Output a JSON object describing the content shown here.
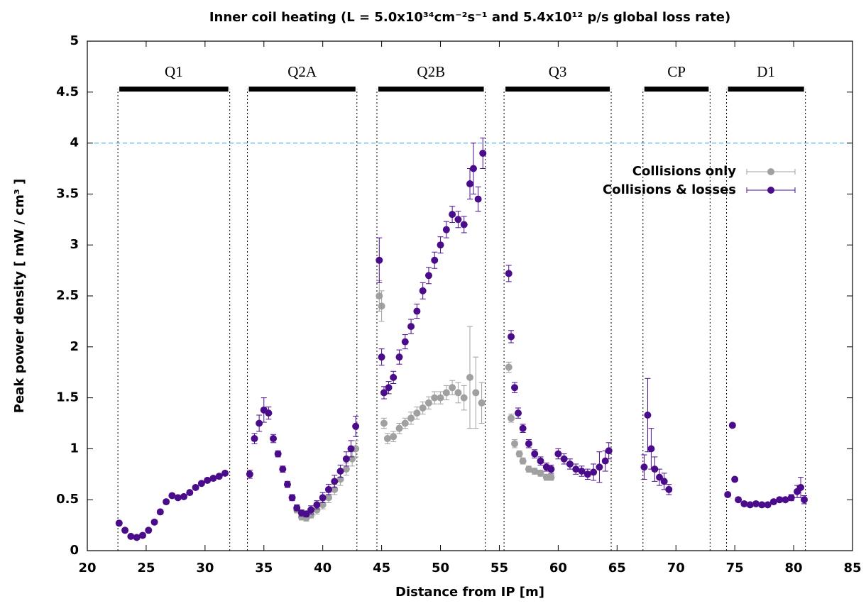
{
  "chart_data": {
    "type": "scatter",
    "title": "Inner coil heating (L = 5.0x10³⁴cm⁻²s⁻¹ and 5.4x10¹² p/s global loss rate)",
    "x_label": "Distance from IP [m]",
    "y_label": "Peak power density [ mW / cm³ ]",
    "xlim": [
      20,
      85
    ],
    "ylim": [
      0,
      5
    ],
    "xticks": [
      20,
      25,
      30,
      35,
      40,
      45,
      50,
      55,
      60,
      65,
      70,
      75,
      80,
      85
    ],
    "yticks": [
      0,
      0.5,
      1,
      1.5,
      2,
      2.5,
      3,
      3.5,
      4,
      4.5,
      5
    ],
    "reference_line": {
      "value": 4,
      "color": "#56b4e9"
    },
    "segments": [
      {
        "label": "Q1",
        "start": 22.6,
        "end": 32.1
      },
      {
        "label": "Q2A",
        "start": 33.6,
        "end": 42.9
      },
      {
        "label": "Q2B",
        "start": 44.6,
        "end": 53.8
      },
      {
        "label": "Q3",
        "start": 55.4,
        "end": 64.5
      },
      {
        "label": "CP",
        "start": 67.2,
        "end": 72.9
      },
      {
        "label": "D1",
        "start": 74.3,
        "end": 81.0
      }
    ],
    "segment_bar_level": 4.53,
    "legend": "upper right",
    "series": [
      {
        "name": "Collisions only",
        "color": "#a0a0a0",
        "x": [
          37.8,
          38.2,
          38.6,
          39.0,
          39.5,
          40.0,
          40.5,
          41.0,
          41.5,
          42.0,
          42.5,
          42.8,
          44.8,
          45.0,
          45.2,
          45.5,
          46.0,
          46.5,
          47.0,
          47.5,
          48.0,
          48.5,
          49.0,
          49.5,
          50.0,
          50.5,
          51.0,
          51.5,
          52.0,
          52.5,
          53.0,
          53.5,
          55.8,
          56.0,
          56.3,
          56.7,
          57.0,
          57.5,
          58.0,
          58.5,
          59.0,
          59.4
        ],
        "values": [
          0.4,
          0.33,
          0.32,
          0.35,
          0.4,
          0.45,
          0.52,
          0.6,
          0.7,
          0.8,
          0.9,
          1.0,
          2.5,
          2.4,
          1.25,
          1.1,
          1.12,
          1.2,
          1.25,
          1.3,
          1.35,
          1.4,
          1.45,
          1.5,
          1.5,
          1.55,
          1.6,
          1.55,
          1.5,
          1.7,
          1.55,
          1.45,
          1.8,
          1.3,
          1.05,
          0.95,
          0.88,
          0.8,
          0.78,
          0.76,
          0.72,
          0.72
        ],
        "errors": [
          0.03,
          0.03,
          0.03,
          0.03,
          0.04,
          0.04,
          0.05,
          0.05,
          0.06,
          0.06,
          0.07,
          0.08,
          0.15,
          0.15,
          0.05,
          0.05,
          0.05,
          0.05,
          0.05,
          0.06,
          0.06,
          0.06,
          0.06,
          0.06,
          0.06,
          0.07,
          0.07,
          0.1,
          0.12,
          0.5,
          0.35,
          0.2,
          0.05,
          0.04,
          0.04,
          0.03,
          0.03,
          0.03,
          0.03,
          0.03,
          0.03,
          0.03
        ]
      },
      {
        "name": "Collisions & losses",
        "color": "#4b0c8c",
        "x": [
          22.7,
          23.2,
          23.7,
          24.2,
          24.7,
          25.2,
          25.7,
          26.2,
          26.7,
          27.2,
          27.7,
          28.2,
          28.7,
          29.2,
          29.7,
          30.2,
          30.7,
          31.2,
          31.7,
          33.8,
          34.2,
          34.6,
          35.0,
          35.4,
          35.8,
          36.2,
          36.6,
          37.0,
          37.4,
          37.8,
          38.2,
          38.6,
          39.0,
          39.5,
          40.0,
          40.5,
          41.0,
          41.5,
          42.0,
          42.4,
          42.8,
          44.8,
          45.0,
          45.2,
          45.6,
          46.0,
          46.5,
          47.0,
          47.5,
          48.0,
          48.5,
          49.0,
          49.5,
          50.0,
          50.5,
          51.0,
          51.5,
          52.0,
          52.5,
          52.8,
          53.2,
          53.6,
          55.8,
          56.0,
          56.3,
          56.6,
          57.0,
          57.5,
          58.0,
          58.5,
          59.0,
          59.4,
          60.0,
          60.5,
          61.0,
          61.5,
          62.0,
          62.5,
          63.0,
          63.5,
          64.0,
          64.3,
          67.3,
          67.6,
          67.9,
          68.2,
          68.6,
          69.0,
          69.4,
          74.4,
          74.8,
          75.0,
          75.3,
          75.8,
          76.3,
          76.8,
          77.3,
          77.8,
          78.3,
          78.8,
          79.3,
          79.8,
          80.3,
          80.6,
          80.9
        ],
        "values": [
          0.27,
          0.2,
          0.14,
          0.13,
          0.15,
          0.2,
          0.28,
          0.38,
          0.48,
          0.54,
          0.52,
          0.53,
          0.57,
          0.62,
          0.66,
          0.69,
          0.71,
          0.73,
          0.76,
          0.75,
          1.1,
          1.25,
          1.38,
          1.35,
          1.1,
          0.95,
          0.8,
          0.65,
          0.52,
          0.42,
          0.37,
          0.36,
          0.4,
          0.45,
          0.52,
          0.6,
          0.68,
          0.78,
          0.9,
          1.0,
          1.22,
          2.85,
          1.9,
          1.55,
          1.6,
          1.7,
          1.9,
          2.05,
          2.2,
          2.35,
          2.55,
          2.7,
          2.85,
          3.0,
          3.15,
          3.3,
          3.25,
          3.2,
          3.6,
          3.75,
          3.45,
          3.9,
          2.72,
          2.1,
          1.6,
          1.35,
          1.2,
          1.05,
          0.95,
          0.88,
          0.82,
          0.8,
          0.95,
          0.9,
          0.85,
          0.8,
          0.78,
          0.75,
          0.77,
          0.82,
          0.88,
          0.98,
          0.82,
          1.33,
          1.0,
          0.8,
          0.72,
          0.68,
          0.6,
          0.55,
          1.23,
          0.7,
          0.5,
          0.46,
          0.45,
          0.46,
          0.45,
          0.45,
          0.48,
          0.5,
          0.5,
          0.52,
          0.58,
          0.62,
          0.5
        ],
        "errors": [
          0.02,
          0.02,
          0.02,
          0.02,
          0.02,
          0.02,
          0.02,
          0.02,
          0.02,
          0.02,
          0.02,
          0.02,
          0.02,
          0.02,
          0.02,
          0.02,
          0.02,
          0.02,
          0.02,
          0.04,
          0.05,
          0.08,
          0.12,
          0.06,
          0.04,
          0.03,
          0.03,
          0.03,
          0.03,
          0.03,
          0.03,
          0.03,
          0.04,
          0.04,
          0.05,
          0.05,
          0.06,
          0.06,
          0.07,
          0.08,
          0.1,
          0.22,
          0.08,
          0.06,
          0.06,
          0.06,
          0.07,
          0.07,
          0.07,
          0.07,
          0.08,
          0.08,
          0.08,
          0.08,
          0.08,
          0.08,
          0.08,
          0.08,
          0.15,
          0.25,
          0.12,
          0.15,
          0.08,
          0.06,
          0.05,
          0.05,
          0.04,
          0.04,
          0.04,
          0.04,
          0.04,
          0.04,
          0.05,
          0.05,
          0.05,
          0.05,
          0.05,
          0.05,
          0.08,
          0.15,
          0.1,
          0.08,
          0.12,
          0.36,
          0.2,
          0.12,
          0.08,
          0.08,
          0.05,
          0.02,
          0.02,
          0.02,
          0.02,
          0.02,
          0.02,
          0.02,
          0.02,
          0.02,
          0.02,
          0.02,
          0.02,
          0.03,
          0.06,
          0.1,
          0.04
        ]
      }
    ]
  }
}
